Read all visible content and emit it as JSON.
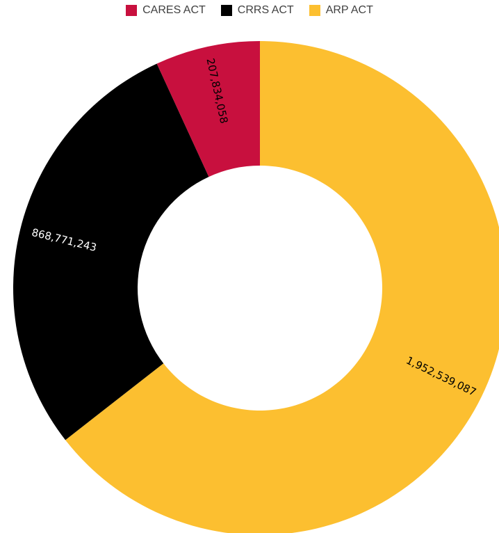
{
  "chart_data": {
    "type": "pie",
    "variant": "donut",
    "legend_position": "top",
    "series": [
      {
        "name": "CARES ACT",
        "value": 207834058,
        "label": "207,834,058",
        "color": "#C8103E",
        "label_color": "#000000"
      },
      {
        "name": "CRRS ACT",
        "value": 868771243,
        "label": "868,771,243",
        "color": "#000000",
        "label_color": "#ffffff"
      },
      {
        "name": "ARP ACT",
        "value": 1952539087,
        "label": "1,952,539,087",
        "color": "#FCBF30",
        "label_color": "#000000"
      }
    ]
  }
}
